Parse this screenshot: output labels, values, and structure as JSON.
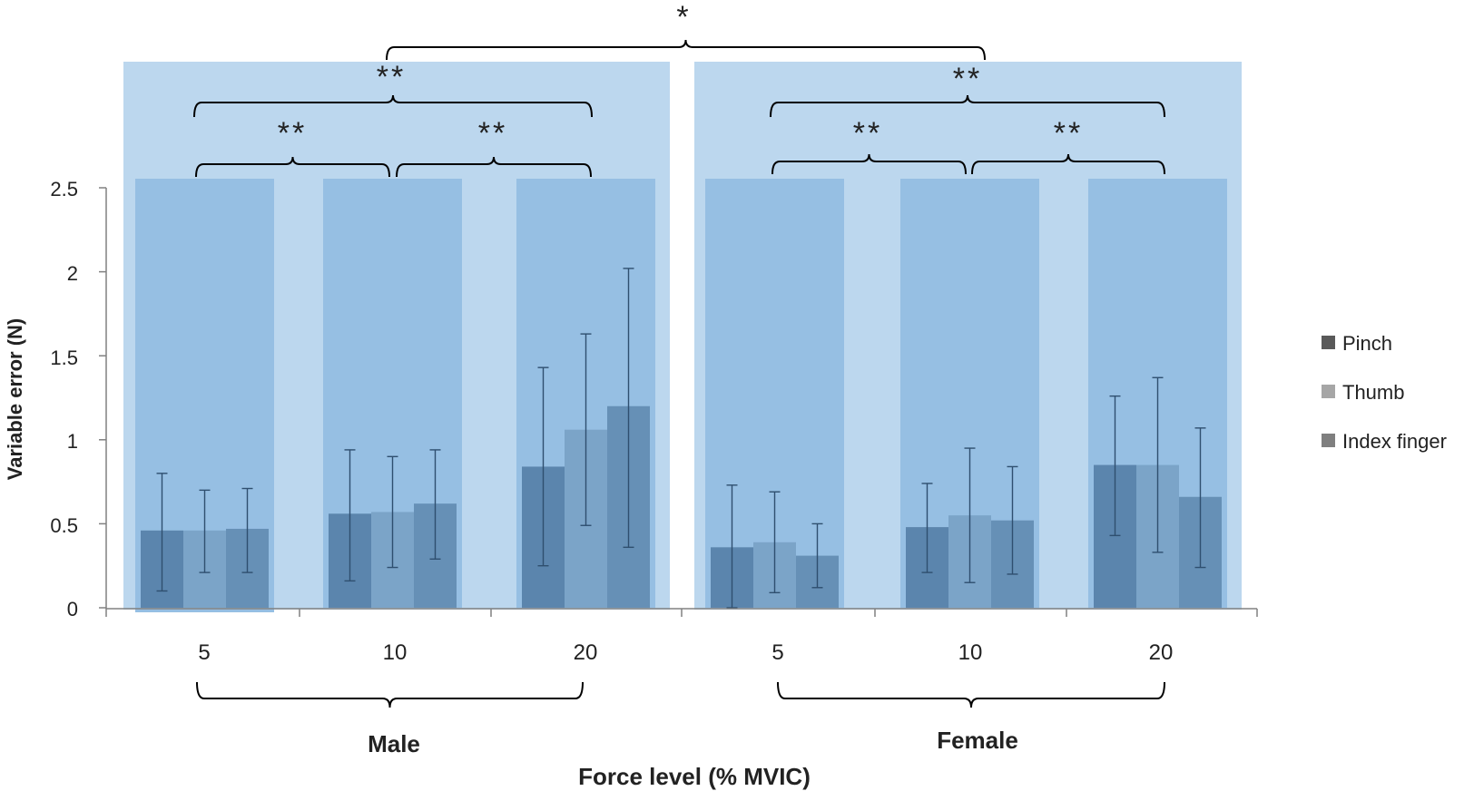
{
  "colors": {
    "panel": "#bcd7ee",
    "inner": "#96bfe3",
    "pinch_bar": "#5b85ad",
    "thumb_bar": "#7ba4c8",
    "index_bar": "#6690b6",
    "legend_pinch": "#595959",
    "legend_thumb": "#a6a6a6",
    "legend_index": "#7f7f7f",
    "axis": "#808080",
    "error": "#2f4f6f",
    "bracket": "#000000"
  },
  "chart_data": {
    "type": "bar",
    "ylabel": "Variable error (N)",
    "xlabel": "Force level (% MVIC)",
    "ylim": [
      0,
      2.5
    ],
    "yticks": [
      "0",
      "0.5",
      "1",
      "1.5",
      "2",
      "2.5"
    ],
    "groups": [
      {
        "label": "Male",
        "categories": [
          "5",
          "10",
          "20"
        ]
      },
      {
        "label": "Female",
        "categories": [
          "5",
          "10",
          "20"
        ]
      }
    ],
    "series": [
      {
        "name": "Pinch",
        "values": [
          0.46,
          0.56,
          0.84,
          0.36,
          0.48,
          0.85
        ],
        "err_low": [
          0.1,
          0.16,
          0.25,
          0.0,
          0.21,
          0.43
        ],
        "err_high": [
          0.8,
          0.94,
          1.43,
          0.73,
          0.74,
          1.26
        ]
      },
      {
        "name": "Thumb",
        "values": [
          0.46,
          0.57,
          1.06,
          0.39,
          0.55,
          0.85
        ],
        "err_low": [
          0.21,
          0.24,
          0.49,
          0.09,
          0.15,
          0.33
        ],
        "err_high": [
          0.7,
          0.9,
          1.63,
          0.69,
          0.95,
          1.37
        ]
      },
      {
        "name": "Index finger",
        "values": [
          0.47,
          0.62,
          1.2,
          0.31,
          0.52,
          0.66
        ],
        "err_low": [
          0.21,
          0.29,
          0.36,
          0.12,
          0.2,
          0.24
        ],
        "err_high": [
          0.71,
          0.94,
          2.02,
          0.5,
          0.84,
          1.07
        ]
      }
    ],
    "significance": {
      "overall": "*",
      "male_20_vs_5": "**",
      "male_10_vs_5": "**",
      "male_20_vs_10": "**",
      "female_20_vs_5": "**",
      "female_10_vs_5": "**",
      "female_20_vs_10": "**"
    }
  }
}
